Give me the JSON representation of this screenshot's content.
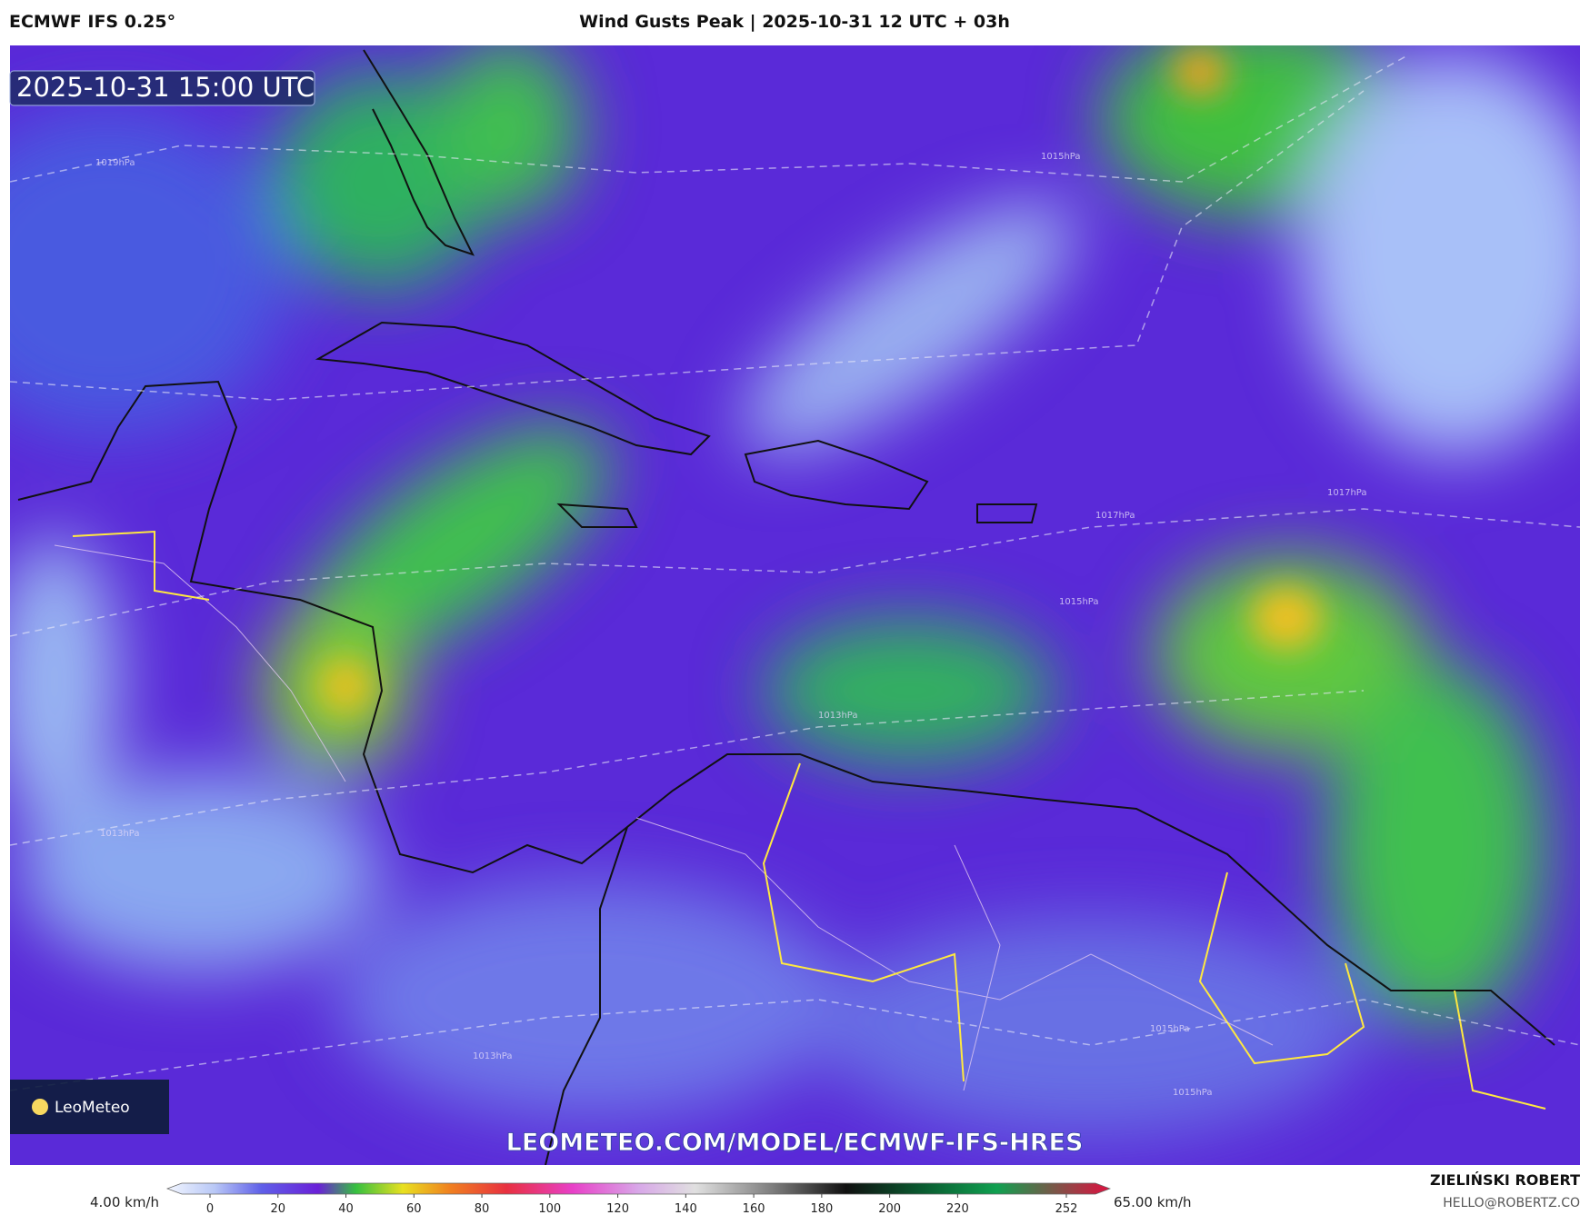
{
  "header": {
    "model": "ECMWF IFS 0.25°",
    "title": "Wind Gusts Peak | 2025-10-31 12 UTC + 03h"
  },
  "map": {
    "valid_time": "2025-10-31 15:00 UTC",
    "logo": "LeoMeteo",
    "url": "LEOMETEO.COM/MODEL/ECMWF-IFS-HRES",
    "isobar_labels": [
      "1019hPa",
      "1015hPa",
      "1017hPa",
      "1017hPa",
      "1015hPa",
      "1013hPa",
      "1013hPa",
      "1013hPa",
      "1015hPa",
      "1015hPa"
    ]
  },
  "colorbar": {
    "min_label": "4.00 km/h",
    "max_label": "65.00 km/h",
    "ticks": [
      0,
      20,
      40,
      60,
      80,
      100,
      120,
      140,
      160,
      180,
      200,
      220,
      252
    ]
  },
  "footer": {
    "author": "ZIELIŃSKI ROBERT",
    "email": "HELLO@ROBERTZ.CO"
  }
}
